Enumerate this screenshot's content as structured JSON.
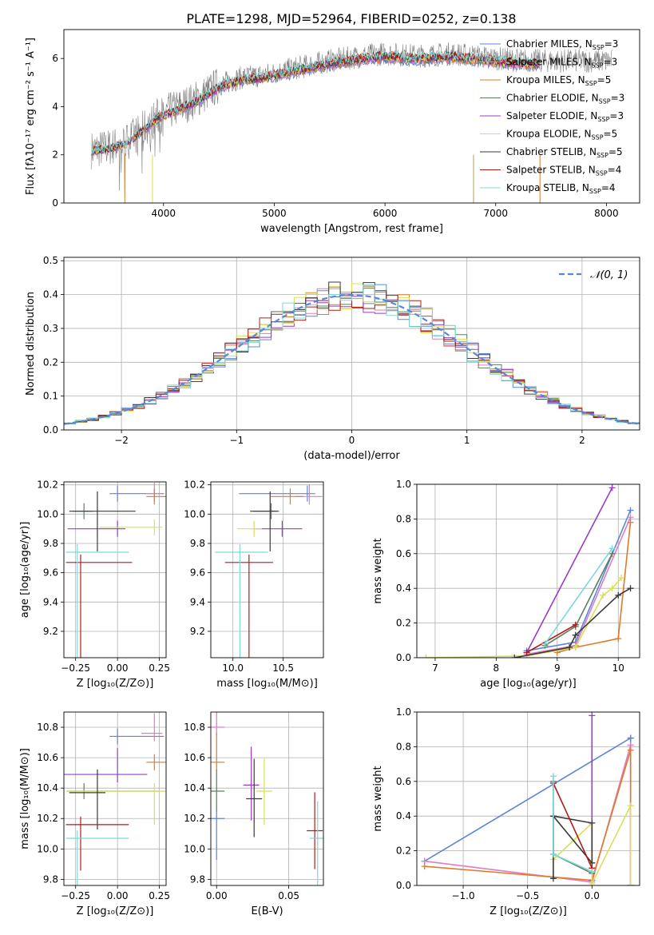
{
  "title": "PLATE=1298, MJD=52964, FIBERID=0252, z=0.138",
  "colors": {
    "Chabrier MILES": "#5b86d8",
    "Salpeter MILES": "#e27bc2",
    "Kroupa MILES": "#e07a2a",
    "Chabrier ELODIE": "#5f7f5f",
    "Salpeter ELODIE": "#9b3cc4",
    "Kroupa ELODIE": "#d8e058",
    "Chabrier STELIB": "#3a3a3a",
    "Salpeter STELIB": "#b01c1c",
    "Kroupa STELIB": "#7fd8d8",
    "gauss": "#5b86d8"
  },
  "chart_data": [
    {
      "id": "spectrum",
      "type": "line",
      "xlabel": "wavelength [Angstrom, rest frame]",
      "ylabel": "Flux [fλ10⁻¹⁷ erg cm⁻² s⁻¹ A⁻¹]",
      "xlim": [
        3100,
        8300
      ],
      "ylim": [
        0,
        7.2
      ],
      "xticks": [
        "4000",
        "5000",
        "6000",
        "7000",
        "8000"
      ],
      "yticks": [
        "0",
        "2",
        "4",
        "6"
      ],
      "legend": [
        {
          "name": "Chabrier MILES, N_SSP=3",
          "base": "Chabrier MILES, N",
          "sub": "SSP",
          "tail": "=3"
        },
        {
          "name": "Salpeter MILES, N_SSP=3",
          "base": "Salpeter MILES, N",
          "sub": "SSP",
          "tail": "=3"
        },
        {
          "name": "Kroupa MILES, N_SSP=5",
          "base": "Kroupa MILES, N",
          "sub": "SSP",
          "tail": "=5"
        },
        {
          "name": "Chabrier ELODIE, N_SSP=3",
          "base": "Chabrier ELODIE, N",
          "sub": "SSP",
          "tail": "=3"
        },
        {
          "name": "Salpeter ELODIE, N_SSP=3",
          "base": "Salpeter ELODIE, N",
          "sub": "SSP",
          "tail": "=3"
        },
        {
          "name": "Kroupa ELODIE, N_SSP=5",
          "base": "Kroupa ELODIE, N",
          "sub": "SSP",
          "tail": "=5"
        },
        {
          "name": "Chabrier STELIB, N_SSP=5",
          "base": "Chabrier STELIB, N",
          "sub": "SSP",
          "tail": "=5"
        },
        {
          "name": "Salpeter STELIB, N_SSP=4",
          "base": "Salpeter STELIB, N",
          "sub": "SSP",
          "tail": "=4"
        },
        {
          "name": "Kroupa STELIB, N_SSP=4",
          "base": "Kroupa STELIB, N",
          "sub": "SSP",
          "tail": "=4"
        }
      ],
      "continuum": [
        [
          3350,
          2.2
        ],
        [
          3500,
          2.3
        ],
        [
          3650,
          2.5
        ],
        [
          3800,
          3.0
        ],
        [
          3950,
          3.6
        ],
        [
          4100,
          3.9
        ],
        [
          4300,
          4.3
        ],
        [
          4500,
          4.9
        ],
        [
          4700,
          5.2
        ],
        [
          4900,
          5.3
        ],
        [
          5100,
          5.5
        ],
        [
          5300,
          5.7
        ],
        [
          5500,
          5.9
        ],
        [
          5800,
          6.1
        ],
        [
          6000,
          6.2
        ],
        [
          6300,
          6.1
        ],
        [
          6600,
          6.2
        ],
        [
          7000,
          6.0
        ],
        [
          7300,
          5.9
        ]
      ],
      "observed_range": [
        3350,
        8050
      ]
    },
    {
      "id": "residuals",
      "type": "step",
      "xlabel": "(data-model)/error",
      "ylabel": "Normed distribution",
      "xlim": [
        -2.5,
        2.5
      ],
      "ylim": [
        0,
        0.51
      ],
      "xticks": [
        "−2",
        "−1",
        "0",
        "1",
        "2"
      ],
      "yticks": [
        "0.0",
        "0.1",
        "0.2",
        "0.3",
        "0.4",
        "0.5"
      ],
      "legend": "𝒩(0, 1)",
      "bin_width": 0.1
    },
    {
      "id": "age_vs_Z",
      "type": "errorbar",
      "xlabel": "Z [log₁₀(Z/Z⊙)]",
      "ylabel": "age  [log₁₀(age/yr)]",
      "xlim": [
        -0.32,
        0.29
      ],
      "ylim": [
        9.02,
        10.22
      ],
      "xticks": [
        "−0.25",
        "0.00",
        "0.25"
      ],
      "yticks": [
        "9.2",
        "9.4",
        "9.6",
        "9.8",
        "10.0",
        "10.2"
      ],
      "points": [
        {
          "model": "Chabrier MILES",
          "x": 0.0,
          "xerr": [
            0.0,
            0.23
          ],
          "y": 10.14,
          "yerr": [
            0.0,
            0.0
          ]
        },
        {
          "model": "Salpeter MILES",
          "x": 0.22,
          "xerr": [
            0.0,
            0.0
          ],
          "y": 10.14,
          "yerr": [
            0.0,
            0.02
          ]
        },
        {
          "model": "Kroupa MILES",
          "x": 0.22,
          "xerr": [
            0.0,
            0.05
          ],
          "y": 10.12,
          "yerr": [
            0.0,
            0.0
          ]
        },
        {
          "model": "Chabrier ELODIE",
          "x": -0.2,
          "xerr": [
            0.02,
            0.0
          ],
          "y": 10.02,
          "yerr": [
            0.0,
            0.0
          ]
        },
        {
          "model": "Salpeter ELODIE",
          "x": 0.0,
          "xerr": [
            0.25,
            0.0
          ],
          "y": 9.9,
          "yerr": [
            0.0,
            0.0
          ]
        },
        {
          "model": "Kroupa ELODIE",
          "x": 0.22,
          "xerr": [
            0.28,
            0.0
          ],
          "y": 9.91,
          "yerr": [
            0.0,
            0.0
          ]
        },
        {
          "model": "Chabrier STELIB",
          "x": -0.12,
          "xerr": [
            0.12,
            0.18
          ],
          "y": 10.02,
          "yerr": [
            0.22,
            0.08
          ]
        },
        {
          "model": "Salpeter STELIB",
          "x": -0.22,
          "xerr": [
            0.04,
            0.26
          ],
          "y": 9.67,
          "yerr": [
            0.6,
            0.0
          ]
        },
        {
          "model": "Kroupa STELIB",
          "x": -0.24,
          "xerr": [
            0.02,
            0.26
          ],
          "y": 9.74,
          "yerr": [
            0.7,
            0.0
          ]
        }
      ]
    },
    {
      "id": "age_vs_mass",
      "type": "errorbar",
      "xlabel": "mass [log₁₀(M/M⊙)]",
      "ylabel": "",
      "xlim": [
        9.78,
        10.9
      ],
      "ylim": [
        9.02,
        10.22
      ],
      "xticks": [
        "10.0",
        "10.5"
      ],
      "yticks": [
        "9.2",
        "9.4",
        "9.6",
        "9.8",
        "10.0",
        "10.2"
      ],
      "points": [
        {
          "model": "Chabrier MILES",
          "x": 10.74,
          "xerr": [
            0.6,
            0.0
          ],
          "y": 10.14,
          "yerr": [
            0.0,
            0.0
          ]
        },
        {
          "model": "Salpeter MILES",
          "x": 10.76,
          "xerr": [
            0.06,
            0.05
          ],
          "y": 10.12,
          "yerr": [
            0.0,
            0.03
          ]
        },
        {
          "model": "Kroupa MILES",
          "x": 10.57,
          "xerr": [
            0.12,
            0.05
          ],
          "y": 10.12,
          "yerr": [
            0.0,
            0.0
          ]
        },
        {
          "model": "Chabrier ELODIE",
          "x": 10.38,
          "xerr": [
            0.1,
            0.0
          ],
          "y": 10.02,
          "yerr": [
            0.0,
            0.0
          ]
        },
        {
          "model": "Salpeter ELODIE",
          "x": 10.49,
          "xerr": [
            0.2,
            0.12
          ],
          "y": 9.9,
          "yerr": [
            0.0,
            0.0
          ]
        },
        {
          "model": "Kroupa ELODIE",
          "x": 10.21,
          "xerr": [
            0.09,
            0.0
          ],
          "y": 9.9,
          "yerr": [
            0.0,
            0.0
          ]
        },
        {
          "model": "Chabrier STELIB",
          "x": 10.37,
          "xerr": [
            0.12,
            0.0
          ],
          "y": 10.02,
          "yerr": [
            0.22,
            0.08
          ]
        },
        {
          "model": "Salpeter STELIB",
          "x": 10.16,
          "xerr": [
            0.16,
            0.16
          ],
          "y": 9.67,
          "yerr": [
            0.6,
            0.0
          ]
        },
        {
          "model": "Kroupa STELIB",
          "x": 10.07,
          "xerr": [
            0.17,
            0.2
          ],
          "y": 9.74,
          "yerr": [
            0.7,
            0.0
          ]
        }
      ]
    },
    {
      "id": "weight_vs_age",
      "type": "line",
      "xlabel": "age  [log₁₀(age/yr)]",
      "ylabel": "mass weight",
      "xlim": [
        6.7,
        10.35
      ],
      "ylim": [
        0,
        1.0
      ],
      "xticks": [
        "7",
        "8",
        "9",
        "10"
      ],
      "yticks": [
        "0.0",
        "0.2",
        "0.4",
        "0.6",
        "0.8",
        "1.0"
      ],
      "series": [
        {
          "model": "Chabrier MILES",
          "x": [
            8.5,
            9.3,
            10.2
          ],
          "y": [
            0.04,
            0.09,
            0.85
          ]
        },
        {
          "model": "Salpeter MILES",
          "x": [
            8.5,
            9.3,
            10.2
          ],
          "y": [
            0.02,
            0.07,
            0.81
          ]
        },
        {
          "model": "Kroupa MILES",
          "x": [
            9.0,
            9.3,
            10.0,
            10.2
          ],
          "y": [
            0.03,
            0.06,
            0.11,
            0.78
          ]
        },
        {
          "model": "Chabrier ELODIE",
          "x": [
            8.8,
            9.3,
            9.9
          ],
          "y": [
            0.07,
            0.18,
            0.6
          ]
        },
        {
          "model": "Salpeter ELODIE",
          "x": [
            8.5,
            9.9
          ],
          "y": [
            0.03,
            0.98
          ]
        },
        {
          "model": "Kroupa ELODIE",
          "x": [
            6.85,
            8.5,
            9.3,
            9.75,
            9.9,
            10.05
          ],
          "y": [
            0.0,
            0.01,
            0.06,
            0.36,
            0.4,
            0.46
          ]
        },
        {
          "model": "Chabrier STELIB",
          "x": [
            8.3,
            9.2,
            9.3,
            10.0,
            10.2
          ],
          "y": [
            0.0,
            0.06,
            0.13,
            0.36,
            0.4
          ]
        },
        {
          "model": "Salpeter STELIB",
          "x": [
            8.5,
            9.3
          ],
          "y": [
            0.03,
            0.19
          ]
        },
        {
          "model": "Kroupa STELIB",
          "x": [
            8.8,
            9.9
          ],
          "y": [
            0.08,
            0.63
          ]
        }
      ]
    },
    {
      "id": "mass_vs_Z",
      "type": "errorbar",
      "xlabel": "Z [log₁₀(Z/Z⊙)]",
      "ylabel": "mass [log₁₀(M/M⊙)]",
      "xlim": [
        -0.32,
        0.29
      ],
      "ylim": [
        9.76,
        10.9
      ],
      "xticks": [
        "−0.25",
        "0.00",
        "0.25"
      ],
      "yticks": [
        "9.8",
        "10.0",
        "10.2",
        "10.4",
        "10.6",
        "10.8"
      ],
      "points": [
        {
          "model": "Chabrier MILES",
          "x": 0.0,
          "xerr": [
            0.0,
            0.23
          ],
          "y": 10.74,
          "yerr": [
            0.0,
            0.0
          ]
        },
        {
          "model": "Salpeter MILES",
          "x": 0.22,
          "xerr": [
            0.03,
            0.0
          ],
          "y": 10.76,
          "yerr": [
            0.0,
            0.08
          ]
        },
        {
          "model": "Kroupa MILES",
          "x": 0.22,
          "xerr": [
            0.0,
            0.07
          ],
          "y": 10.57,
          "yerr": [
            0.0,
            0.0
          ]
        },
        {
          "model": "Chabrier ELODIE",
          "x": -0.2,
          "xerr": [
            0.05,
            0.4
          ],
          "y": 10.38,
          "yerr": [
            0.0,
            0.0
          ]
        },
        {
          "model": "Salpeter ELODIE",
          "x": 0.0,
          "xerr": [
            0.28,
            0.13
          ],
          "y": 10.49,
          "yerr": [
            0.0,
            0.12
          ]
        },
        {
          "model": "Kroupa ELODIE",
          "x": 0.22,
          "xerr": [
            0.48,
            0.02
          ],
          "y": 10.38,
          "yerr": [
            0.17,
            0.0
          ]
        },
        {
          "model": "Chabrier STELIB",
          "x": -0.12,
          "xerr": [
            0.12,
            0.0
          ],
          "y": 10.37,
          "yerr": [
            0.19,
            0.1
          ]
        },
        {
          "model": "Salpeter STELIB",
          "x": -0.22,
          "xerr": [
            0.04,
            0.24
          ],
          "y": 10.16,
          "yerr": [
            0.25,
            0.0
          ]
        },
        {
          "model": "Kroupa STELIB",
          "x": -0.24,
          "xerr": [
            0.02,
            0.26
          ],
          "y": 10.07,
          "yerr": [
            0.27,
            0.0
          ]
        }
      ]
    },
    {
      "id": "mass_vs_ebv",
      "type": "errorbar",
      "xlabel": "E(B-V)",
      "ylabel": "",
      "xlim": [
        -0.004,
        0.074
      ],
      "ylim": [
        9.76,
        10.9
      ],
      "xticks": [
        "0.00",
        "0.05"
      ],
      "yticks": [
        "9.8",
        "10.0",
        "10.2",
        "10.4",
        "10.6",
        "10.8"
      ],
      "points": [
        {
          "model": "Chabrier MILES",
          "x": 0.0,
          "y": 10.2,
          "yerr": [
            0.22,
            0.0
          ]
        },
        {
          "model": "Salpeter MILES",
          "x": 0.0,
          "y": 10.8,
          "yerr": [
            0.0,
            0.06
          ]
        },
        {
          "model": "Kroupa MILES",
          "x": 0.0,
          "y": 10.57,
          "yerr": [
            0.0,
            0.14
          ]
        },
        {
          "model": "Chabrier ELODIE",
          "x": 0.0,
          "y": 10.38,
          "yerr": [
            0.08,
            0.09
          ]
        },
        {
          "model": "Salpeter ELODIE",
          "x": 0.024,
          "y": 10.42,
          "yerr": [
            0.18,
            0.2
          ]
        },
        {
          "model": "Kroupa ELODIE",
          "x": 0.033,
          "y": 10.38,
          "yerr": [
            0.17,
            0.17
          ]
        },
        {
          "model": "Chabrier STELIB",
          "x": 0.026,
          "y": 10.33,
          "yerr": [
            0.2,
            0.21
          ]
        },
        {
          "model": "Salpeter STELIB",
          "x": 0.068,
          "y": 10.12,
          "yerr": [
            0.2,
            0.2
          ]
        },
        {
          "model": "Kroupa STELIB",
          "x": 0.07,
          "y": 10.07,
          "yerr": [
            0.27,
            0.19
          ]
        }
      ]
    },
    {
      "id": "weight_vs_Z",
      "type": "line",
      "xlabel": "Z [log₁₀(Z/Z⊙)]",
      "ylabel": "mass weight",
      "xlim": [
        -1.36,
        0.37
      ],
      "ylim": [
        0,
        1.0
      ],
      "xticks": [
        "−1.0",
        "−0.5",
        "0.0"
      ],
      "yticks": [
        "0.0",
        "0.2",
        "0.4",
        "0.6",
        "0.8",
        "1.0"
      ],
      "series": [
        {
          "model": "Chabrier MILES",
          "x": [
            0.3,
            0.3,
            -1.3,
            0.3
          ],
          "y": [
            0.0,
            0.85,
            0.14,
            0.85
          ]
        },
        {
          "model": "Salpeter MILES",
          "x": [
            -1.3,
            0.0,
            0.3,
            0.3
          ],
          "y": [
            0.14,
            0.02,
            0.81,
            0.0
          ]
        },
        {
          "model": "Kroupa MILES",
          "x": [
            -1.3,
            0.0,
            0.3,
            0.3
          ],
          "y": [
            0.11,
            0.03,
            0.78,
            0.0
          ]
        },
        {
          "model": "Chabrier ELODIE",
          "x": [
            -0.3,
            -0.3,
            0.0
          ],
          "y": [
            0.6,
            0.18,
            0.07
          ]
        },
        {
          "model": "Salpeter ELODIE",
          "x": [
            0.0,
            0.0
          ],
          "y": [
            0.98,
            0.03
          ]
        },
        {
          "model": "Kroupa ELODIE",
          "x": [
            -0.3,
            0.0,
            0.0,
            0.3,
            0.3
          ],
          "y": [
            0.15,
            0.36,
            0.01,
            0.46,
            0.0
          ]
        },
        {
          "model": "Chabrier STELIB",
          "x": [
            -0.3,
            -0.3,
            0.0,
            0.0,
            -0.3
          ],
          "y": [
            0.04,
            0.4,
            0.13,
            0.36,
            0.4
          ]
        },
        {
          "model": "Salpeter STELIB",
          "x": [
            -0.3,
            0.0
          ],
          "y": [
            0.59,
            0.1
          ]
        },
        {
          "model": "Kroupa STELIB",
          "x": [
            -0.3,
            -0.3,
            0.0
          ],
          "y": [
            0.63,
            0.18,
            0.08
          ]
        }
      ]
    }
  ]
}
